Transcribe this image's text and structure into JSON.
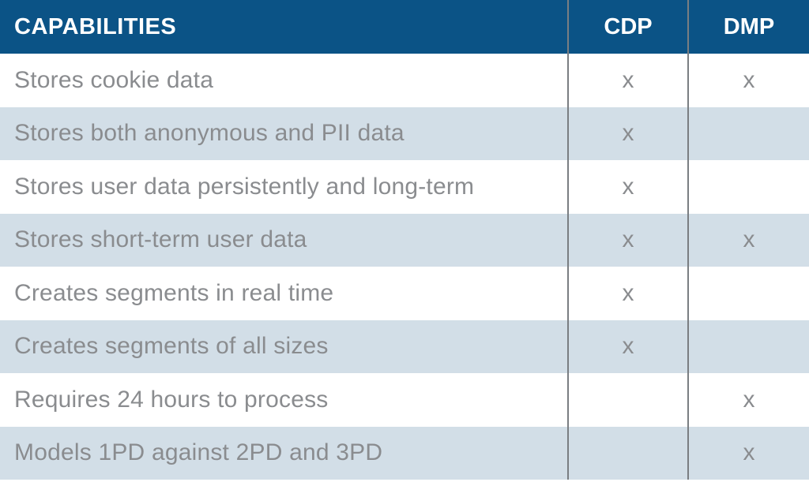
{
  "header": {
    "capabilities": "CAPABILITIES",
    "cdp": "CDP",
    "dmp": "DMP"
  },
  "rows": [
    {
      "label": "Stores cookie data",
      "cdp": "x",
      "dmp": "x"
    },
    {
      "label": "Stores both anonymous and PII data",
      "cdp": "x",
      "dmp": ""
    },
    {
      "label": "Stores user data persistently and long-term",
      "cdp": "x",
      "dmp": ""
    },
    {
      "label": "Stores short-term user data",
      "cdp": "x",
      "dmp": "x"
    },
    {
      "label": "Creates segments in real time",
      "cdp": "x",
      "dmp": ""
    },
    {
      "label": "Creates segments of all sizes",
      "cdp": "x",
      "dmp": ""
    },
    {
      "label": "Requires 24 hours to process",
      "cdp": "",
      "dmp": "x"
    },
    {
      "label": "Models 1PD against 2PD and 3PD",
      "cdp": "",
      "dmp": "x"
    }
  ],
  "colors": {
    "header_bg": "#0b5386",
    "header_text": "#ffffff",
    "shaded_row": "#d2dee7",
    "plain_row": "#ffffff",
    "body_text": "#8a8c8f",
    "divider": "#7a7e82"
  }
}
